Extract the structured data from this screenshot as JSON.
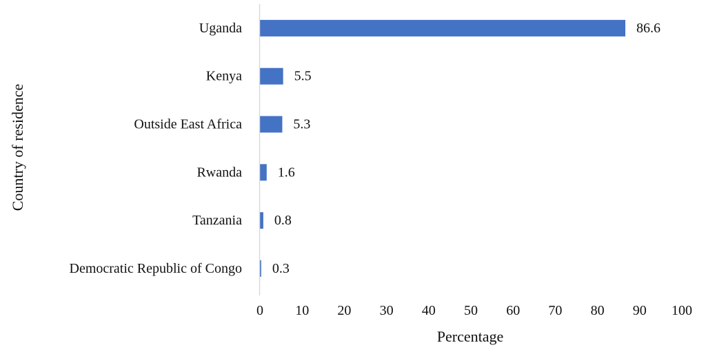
{
  "chart_data": {
    "type": "bar",
    "orientation": "horizontal",
    "categories": [
      "Uganda",
      "Kenya",
      "Outside East Africa",
      "Rwanda",
      "Tanzania",
      "Democratic Republic of Congo"
    ],
    "values": [
      86.6,
      5.5,
      5.3,
      1.6,
      0.8,
      0.3
    ],
    "data_labels": [
      "86.6",
      "5.5",
      "5.3",
      "1.6",
      "0.8",
      "0.3"
    ],
    "title": "",
    "xlabel": "Percentage",
    "ylabel": "Country of residence",
    "xlim": [
      0,
      100
    ],
    "x_ticks": [
      0,
      10,
      20,
      30,
      40,
      50,
      60,
      70,
      80,
      90,
      100
    ],
    "x_tick_labels": [
      "0",
      "10",
      "20",
      "30",
      "40",
      "50",
      "60",
      "70",
      "80",
      "90",
      "100"
    ],
    "grid": false,
    "legend": "none",
    "bar_color": "#4472C4",
    "axis_color": "#D9D9D9"
  }
}
